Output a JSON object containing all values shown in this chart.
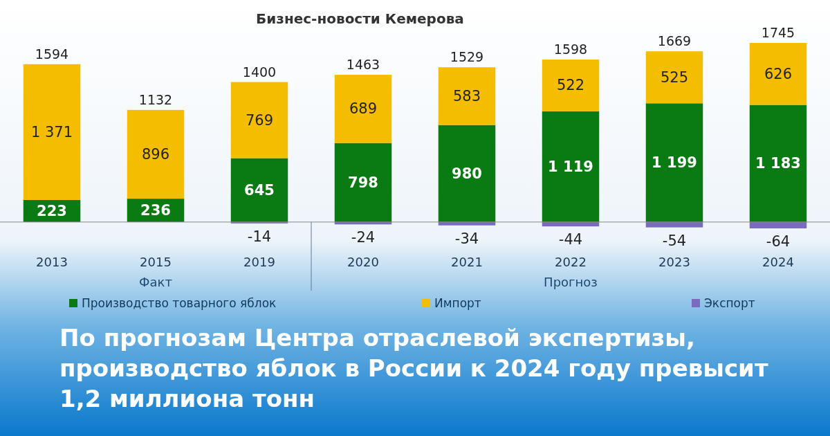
{
  "chart_data": {
    "type": "bar",
    "stacked": true,
    "title": "По прогнозам Центра отраслевой экспертизы, производство яблок в России к 2024 году превысит 1,2 миллиона тонн",
    "subtitle": "Бизнес-новости Кемерова",
    "categories": [
      "2013",
      "2015",
      "2019",
      "2020",
      "2021",
      "2022",
      "2023",
      "2024"
    ],
    "series": [
      {
        "name": "Производство товарного яблок",
        "color": "#0a7a12",
        "values": [
          223,
          236,
          645,
          798,
          980,
          1119,
          1199,
          1183
        ],
        "value_labels": [
          "223",
          "236",
          "645",
          "798",
          "980",
          "1 119",
          "1 199",
          "1 183"
        ]
      },
      {
        "name": "Импорт",
        "color": "#f5bd00",
        "values": [
          1371,
          896,
          769,
          689,
          583,
          522,
          525,
          626
        ],
        "value_labels": [
          "1 371",
          "896",
          "769",
          "689",
          "583",
          "522",
          "525",
          "626"
        ]
      },
      {
        "name": "Экспорт",
        "color": "#7b6bbd",
        "values": [
          null,
          null,
          -14,
          -24,
          -34,
          -44,
          -54,
          -64
        ],
        "value_labels": [
          null,
          null,
          "-14",
          "-24",
          "-34",
          "-44",
          "-54",
          "-64"
        ]
      }
    ],
    "totals": [
      "1594",
      "1132",
      "1400",
      "1463",
      "1529",
      "1598",
      "1669",
      "1745"
    ],
    "annotations": [
      "Факт",
      "Прогноз"
    ],
    "legend": "bottom"
  }
}
